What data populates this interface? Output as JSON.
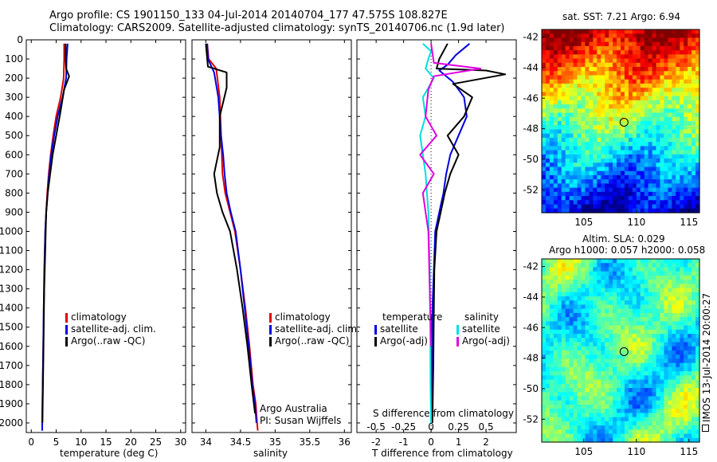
{
  "header": {
    "line1": "Argo profile: CS 1901150_133 04-Jul-2014 20140704_177 47.575S 108.827E",
    "line2": "Climatology: CARS2009. Satellite-adjusted climatology: synTS_20140706.nc (1.9d later)"
  },
  "colors": {
    "climatology": "#e00000",
    "satellite": "#0000e0",
    "argo": "#000000",
    "sat_s": "#00e0e0",
    "argo_s": "#e000e0"
  },
  "legend_profiles": [
    "climatology",
    "satellite-adj. clim.",
    "Argo(..raw -QC)"
  ],
  "legend_diff": {
    "temperature_header": "temperature",
    "salinity_header": "salinity",
    "items_t": [
      "satellite",
      "Argo(-adj)"
    ],
    "items_s": [
      "satellite",
      "Argo(-adj)"
    ]
  },
  "notes": {
    "argo_australia": "Argo Australia",
    "pi": "PI: Susan Wijffels"
  },
  "maps": {
    "sst_title": "sat. SST: 7.21  Argo: 6.94",
    "sla_title1": "Altim. SLA: 0.029",
    "sla_title2": "Argo h1000: 0.057  h2000: 0.058",
    "side_text": "IMOS 13-Jul-2014 20:00:27"
  },
  "chart_data": [
    {
      "type": "line",
      "name": "temperature",
      "xlabel": "temperature (deg C)",
      "ylabel": "",
      "xlim": [
        -1,
        31
      ],
      "ylim": [
        2050,
        0
      ],
      "xticks": [
        0,
        5,
        10,
        15,
        20,
        25,
        30
      ],
      "yticks": [
        0,
        100,
        200,
        300,
        400,
        500,
        600,
        700,
        800,
        900,
        1000,
        1100,
        1200,
        1300,
        1400,
        1500,
        1600,
        1700,
        1800,
        1900,
        2000
      ],
      "series": [
        {
          "name": "climatology",
          "color": "#e00000",
          "x": [
            6.6,
            6.6,
            6.5,
            5.9,
            5.0,
            4.4,
            3.9,
            3.5,
            3.2,
            3.0,
            2.8,
            2.6,
            2.5,
            2.4,
            2.3,
            2.25,
            2.2,
            2.2,
            2.2
          ],
          "y": [
            20,
            100,
            200,
            300,
            400,
            500,
            600,
            700,
            800,
            900,
            1000,
            1200,
            1400,
            1600,
            1800,
            1900,
            1950,
            2000,
            2040
          ]
        },
        {
          "name": "satellite-adj. clim.",
          "color": "#0000e0",
          "x": [
            7.3,
            7.1,
            7.0,
            6.3,
            5.3,
            4.6,
            4.0,
            3.6,
            3.3,
            3.0,
            2.8,
            2.65,
            2.5,
            2.4,
            2.3,
            2.25,
            2.2,
            2.2
          ],
          "y": [
            20,
            100,
            200,
            300,
            400,
            500,
            600,
            700,
            800,
            900,
            1000,
            1200,
            1400,
            1600,
            1800,
            1900,
            2000,
            2040
          ]
        },
        {
          "name": "Argo(..raw -QC)",
          "color": "#000000",
          "x": [
            6.9,
            6.9,
            7.0,
            7.6,
            6.6,
            5.7,
            5.0,
            4.3,
            3.8,
            3.3,
            3.0,
            2.8,
            2.6,
            2.5,
            2.4,
            2.3,
            2.25
          ],
          "y": [
            20,
            100,
            150,
            190,
            260,
            400,
            500,
            600,
            700,
            800,
            900,
            1100,
            1300,
            1500,
            1700,
            1900,
            2000
          ]
        }
      ]
    },
    {
      "type": "line",
      "name": "salinity",
      "xlabel": "salinity",
      "ylabel": "",
      "xlim": [
        33.8,
        36.1
      ],
      "ylim": [
        2050,
        0
      ],
      "xticks": [
        34,
        34.5,
        35,
        35.5,
        36
      ],
      "series": [
        {
          "name": "climatology",
          "color": "#e00000",
          "x": [
            34.02,
            34.04,
            34.15,
            34.2,
            34.22,
            34.23,
            34.24,
            34.28,
            34.35,
            34.42,
            34.5,
            34.57,
            34.63,
            34.68,
            34.72,
            34.74,
            34.75
          ],
          "y": [
            20,
            100,
            150,
            300,
            500,
            600,
            700,
            800,
            900,
            1000,
            1200,
            1400,
            1600,
            1800,
            1900,
            2000,
            2040
          ]
        },
        {
          "name": "satellite-adj. clim.",
          "color": "#0000e0",
          "x": [
            34.02,
            34.03,
            34.12,
            34.18,
            34.22,
            34.25,
            34.27,
            34.3,
            34.36,
            34.43,
            34.5,
            34.56,
            34.62,
            34.67,
            34.71,
            34.73
          ],
          "y": [
            20,
            100,
            170,
            300,
            500,
            600,
            700,
            800,
            900,
            1000,
            1200,
            1400,
            1600,
            1800,
            1900,
            2000
          ]
        },
        {
          "name": "Argo(..raw -QC)",
          "color": "#000000",
          "x": [
            34.0,
            34.02,
            34.03,
            34.3,
            34.3,
            34.2,
            34.2,
            34.2,
            34.12,
            34.16,
            34.24,
            34.35,
            34.45,
            34.53,
            34.6,
            34.66,
            34.71
          ],
          "y": [
            20,
            100,
            140,
            170,
            250,
            400,
            500,
            560,
            700,
            800,
            900,
            1000,
            1200,
            1400,
            1600,
            1800,
            1950
          ]
        }
      ]
    },
    {
      "type": "line",
      "name": "difference",
      "xlabel": "T difference from climatology",
      "title_top": "S difference from climatology",
      "xlim": [
        -2.7,
        3.1
      ],
      "ylim": [
        2050,
        0
      ],
      "xticks": [
        -2,
        -1,
        0,
        1,
        2
      ],
      "sticks_labels": [
        "-0.5",
        "-0.25",
        "0",
        "0.25",
        "0.5"
      ],
      "series": [
        {
          "name": "satellite",
          "color": "#0000e0",
          "x": [
            1.4,
            0.9,
            0.6,
            0.3,
            0.8,
            1.2,
            1.3,
            1.0,
            0.7,
            0.55,
            0.45,
            0.3,
            0.15,
            0.1,
            0.05,
            0.03,
            0.02,
            0.01
          ],
          "y": [
            20,
            80,
            130,
            160,
            220,
            300,
            400,
            500,
            600,
            700,
            800,
            900,
            1000,
            1200,
            1400,
            1600,
            1800,
            2000
          ]
        },
        {
          "name": "Argo(-adj)",
          "color": "#000000",
          "x": [
            0.6,
            0.3,
            0.2,
            2.0,
            2.7,
            0.8,
            1.5,
            1.2,
            0.6,
            1.0,
            0.7,
            0.5,
            0.35,
            0.2,
            0.12,
            0.1,
            0.08,
            0.05
          ],
          "y": [
            20,
            100,
            150,
            160,
            180,
            230,
            300,
            400,
            500,
            600,
            700,
            800,
            900,
            1000,
            1200,
            1400,
            1700,
            2000
          ]
        },
        {
          "name": "satellite S",
          "color": "#00e0e0",
          "x": [
            -0.3,
            0.0,
            -0.1,
            -0.2,
            0.1,
            -0.3,
            -0.2,
            -0.4,
            -0.3,
            -0.2,
            -0.1,
            -0.05,
            -0.03,
            -0.02,
            0.0
          ],
          "y": [
            20,
            60,
            100,
            150,
            200,
            300,
            400,
            500,
            600,
            700,
            900,
            1200,
            1500,
            1800,
            2000
          ]
        },
        {
          "name": "Argo(-adj) S",
          "color": "#e000e0",
          "x": [
            0.0,
            0.1,
            1.8,
            0.1,
            -0.1,
            -0.2,
            0.2,
            -0.4,
            0.1,
            -0.3,
            -0.2,
            -0.1,
            -0.05,
            0.0
          ],
          "y": [
            20,
            120,
            150,
            190,
            260,
            400,
            500,
            600,
            700,
            800,
            900,
            1000,
            1300,
            1600
          ]
        }
      ]
    },
    {
      "type": "heatmap",
      "name": "sst_map",
      "xlim": [
        101,
        116
      ],
      "ylim": [
        -53.5,
        -41.5
      ],
      "xticks": [
        105,
        110,
        115
      ],
      "yticks": [
        -42,
        -44,
        -46,
        -48,
        -50,
        -52
      ],
      "colorscale": "jet",
      "point": {
        "lon": 108.827,
        "lat": -47.575
      }
    },
    {
      "type": "heatmap",
      "name": "sla_map",
      "xlim": [
        101,
        116
      ],
      "ylim": [
        -53.5,
        -41.5
      ],
      "xticks": [
        105,
        110,
        115
      ],
      "yticks": [
        -42,
        -44,
        -46,
        -48,
        -50,
        -52
      ],
      "colorscale": "jet",
      "point": {
        "lon": 108.827,
        "lat": -47.575
      }
    }
  ]
}
